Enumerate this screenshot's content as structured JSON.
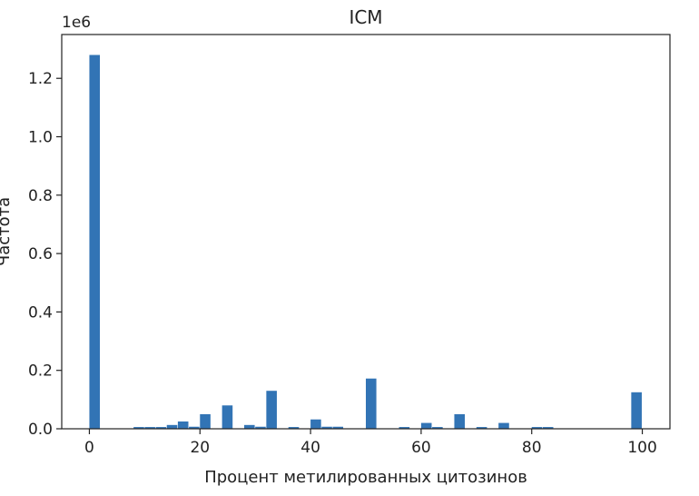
{
  "chart_data": {
    "type": "bar",
    "title": "ICM",
    "xlabel": "Процент метилированных цитозинов",
    "ylabel": "Частота",
    "y_offset_label": "1e6",
    "xlim": [
      -5,
      105
    ],
    "ylim": [
      0,
      1.35
    ],
    "x_ticks": [
      0,
      20,
      40,
      60,
      80,
      100
    ],
    "y_ticks": [
      0.0,
      0.2,
      0.4,
      0.6,
      0.8,
      1.0,
      1.2
    ],
    "y_tick_labels": [
      "0.0",
      "0.2",
      "0.4",
      "0.6",
      "0.8",
      "1.0",
      "1.2"
    ],
    "x_tick_labels": [
      "0",
      "20",
      "40",
      "60",
      "80",
      "100"
    ],
    "grid": false,
    "bar_color": "#3274b5",
    "bin_width": 2,
    "bins_start": [
      0,
      8,
      10,
      12,
      14,
      16,
      18,
      20,
      24,
      28,
      30,
      32,
      36,
      40,
      42,
      44,
      50,
      56,
      60,
      62,
      66,
      70,
      74,
      80,
      82,
      98
    ],
    "values": [
      1.28,
      0.006,
      0.006,
      0.006,
      0.013,
      0.025,
      0.007,
      0.05,
      0.08,
      0.013,
      0.007,
      0.13,
      0.006,
      0.032,
      0.007,
      0.007,
      0.172,
      0.006,
      0.02,
      0.006,
      0.05,
      0.006,
      0.02,
      0.006,
      0.006,
      0.125
    ]
  }
}
